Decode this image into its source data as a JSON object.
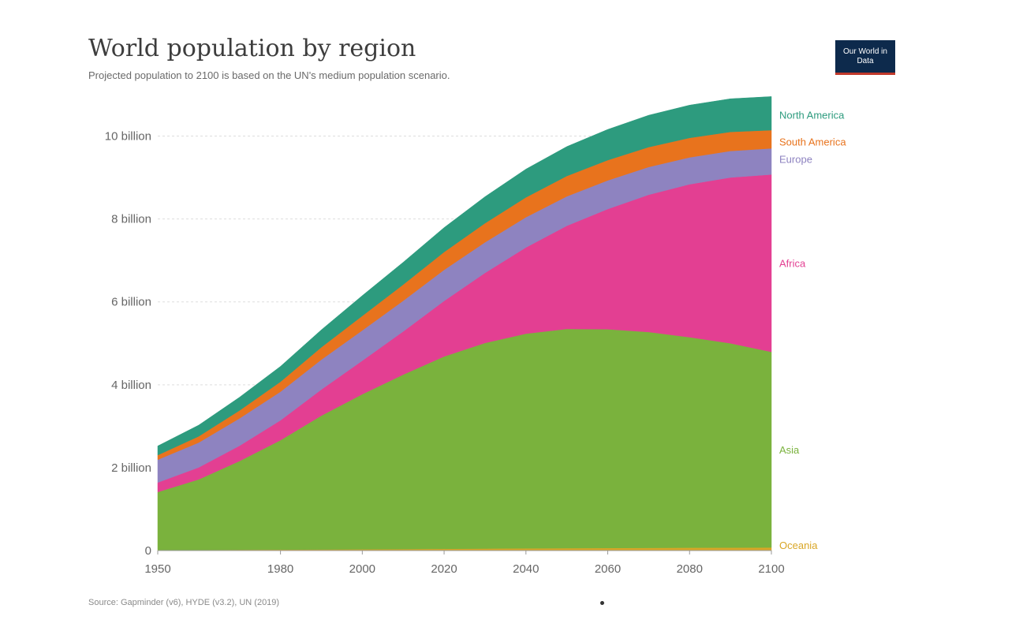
{
  "title": "World population by region",
  "subtitle": "Projected population to 2100 is based on the UN's medium population scenario.",
  "logo_text": "Our World in Data",
  "source": "Source: Gapminder (v6), HYDE (v3.2), UN (2019)",
  "chart_data": {
    "type": "area",
    "stacked": true,
    "x": [
      1950,
      1960,
      1970,
      1980,
      1990,
      2000,
      2010,
      2020,
      2030,
      2040,
      2050,
      2060,
      2070,
      2080,
      2090,
      2100
    ],
    "xticks": [
      1950,
      1980,
      2000,
      2020,
      2040,
      2060,
      2080,
      2100
    ],
    "xtick_labels": [
      "1950",
      "1980",
      "2000",
      "2020",
      "2040",
      "2060",
      "2080",
      "2100"
    ],
    "yticks": [
      0,
      2000000000,
      4000000000,
      6000000000,
      8000000000,
      10000000000
    ],
    "ytick_labels": [
      "0",
      "2 billion",
      "4 billion",
      "6 billion",
      "8 billion",
      "10 billion"
    ],
    "xlim": [
      1950,
      2100
    ],
    "ylim": [
      0,
      11000000000
    ],
    "legend_position": "right, inline labels",
    "series": [
      {
        "name": "Oceania",
        "color": "#d9a626",
        "values": [
          12700000,
          15800000,
          19700000,
          22900000,
          27000000,
          31400000,
          36700000,
          42700000,
          48100000,
          53000000,
          57000000,
          60600000,
          64100000,
          67600000,
          70800000,
          74000000
        ]
      },
      {
        "name": "Asia",
        "color": "#7ab23d",
        "values": [
          1400000000,
          1700000000,
          2140000000,
          2640000000,
          3230000000,
          3740000000,
          4210000000,
          4640000000,
          4960000000,
          5180000000,
          5290000000,
          5280000000,
          5210000000,
          5080000000,
          4930000000,
          4720000000
        ]
      },
      {
        "name": "Africa",
        "color": "#e33f92",
        "values": [
          230000000,
          290000000,
          370000000,
          480000000,
          630000000,
          810000000,
          1040000000,
          1340000000,
          1690000000,
          2080000000,
          2490000000,
          2900000000,
          3310000000,
          3690000000,
          4000000000,
          4280000000
        ]
      },
      {
        "name": "Europe",
        "color": "#8e83c0",
        "values": [
          550000000,
          600000000,
          660000000,
          690000000,
          720000000,
          730000000,
          740000000,
          750000000,
          740000000,
          730000000,
          710000000,
          690000000,
          670000000,
          650000000,
          640000000,
          630000000
        ]
      },
      {
        "name": "South America",
        "color": "#e8731d",
        "values": [
          110000000,
          150000000,
          190000000,
          240000000,
          300000000,
          350000000,
          390000000,
          430000000,
          460000000,
          480000000,
          490000000,
          490000000,
          480000000,
          470000000,
          460000000,
          440000000
        ]
      },
      {
        "name": "North America",
        "color": "#2d9b7e",
        "values": [
          220000000,
          270000000,
          320000000,
          370000000,
          420000000,
          490000000,
          540000000,
          590000000,
          640000000,
          680000000,
          710000000,
          740000000,
          770000000,
          790000000,
          800000000,
          810000000
        ]
      }
    ]
  }
}
